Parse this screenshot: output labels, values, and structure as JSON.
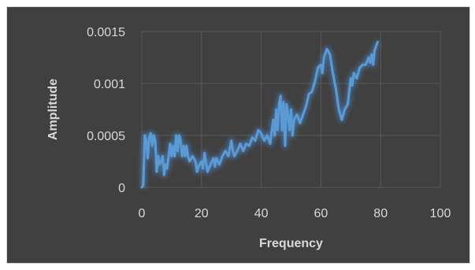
{
  "colors": {
    "background": "#404040",
    "grid": "#595959",
    "series": "#5b9bd5",
    "glow": "#4a90d9",
    "text": "#d9d9d9"
  },
  "chart_data": {
    "type": "scatter",
    "title": "",
    "xlabel": "Frequency",
    "ylabel": "Amplitude",
    "xlim": [
      0,
      100
    ],
    "ylim": [
      0,
      0.0015
    ],
    "xticks": [
      0,
      20,
      40,
      60,
      80,
      100
    ],
    "yticks": [
      0,
      0.0005,
      0.001,
      0.0015
    ],
    "ytick_labels": [
      "0",
      "0.0005",
      "0.001",
      "0.0015"
    ],
    "grid": true,
    "legend": "none",
    "series": [
      {
        "points": [
          [
            0,
            0
          ],
          [
            0.5,
            2e-05
          ],
          [
            1,
            0.0005
          ],
          [
            1.5,
            0.00045
          ],
          [
            2,
            0.00028
          ],
          [
            2.5,
            0.00048
          ],
          [
            3,
            0.00052
          ],
          [
            3.5,
            0.0004
          ],
          [
            4,
            0.0005
          ],
          [
            4.5,
            0.00045
          ],
          [
            5,
            0.00015
          ],
          [
            5.5,
            0.0003
          ],
          [
            6,
            0.00022
          ],
          [
            6.5,
            0.00025
          ],
          [
            7,
            0.0003
          ],
          [
            7.5,
            0.00012
          ],
          [
            8,
            0.00022
          ],
          [
            8.5,
            0.00018
          ],
          [
            9,
            0.0003
          ],
          [
            9.5,
            0.00042
          ],
          [
            10,
            0.0003
          ],
          [
            10.5,
            0.0004
          ],
          [
            11,
            0.0003
          ],
          [
            11.5,
            0.0005
          ],
          [
            12,
            0.00035
          ],
          [
            12.5,
            0.0005
          ],
          [
            13,
            0.00045
          ],
          [
            13.5,
            0.0003
          ],
          [
            14,
            0.0004
          ],
          [
            14.5,
            0.0003
          ],
          [
            15,
            0.0004
          ],
          [
            15.5,
            0.0003
          ],
          [
            16,
            0.00025
          ],
          [
            17,
            0.0003
          ],
          [
            18,
            0.00025
          ],
          [
            18.5,
            0.00015
          ],
          [
            19,
            0.0002
          ],
          [
            20,
            0.00025
          ],
          [
            20.5,
            0.00018
          ],
          [
            21,
            0.00033
          ],
          [
            22,
            0.00015
          ],
          [
            23,
            0.00022
          ],
          [
            24,
            0.00028
          ],
          [
            24.5,
            0.0002
          ],
          [
            25,
            0.00028
          ],
          [
            26,
            0.00022
          ],
          [
            27,
            0.0003
          ],
          [
            28,
            0.00035
          ],
          [
            29,
            0.0003
          ],
          [
            30,
            0.00045
          ],
          [
            30.5,
            0.00035
          ],
          [
            31,
            0.0003
          ],
          [
            32,
            0.00035
          ],
          [
            33,
            0.00042
          ],
          [
            34,
            0.00035
          ],
          [
            35,
            0.00042
          ],
          [
            36,
            0.0004
          ],
          [
            37,
            0.00048
          ],
          [
            38,
            0.00045
          ],
          [
            39,
            0.00055
          ],
          [
            40,
            0.00052
          ],
          [
            41,
            0.00045
          ],
          [
            42,
            0.0005
          ],
          [
            43,
            0.00042
          ],
          [
            44,
            0.00065
          ],
          [
            44.5,
            0.0005
          ],
          [
            45,
            0.00075
          ],
          [
            45.5,
            0.00055
          ],
          [
            46,
            0.0008
          ],
          [
            46.5,
            0.00088
          ],
          [
            47,
            0.00055
          ],
          [
            47.5,
            0.00082
          ],
          [
            48,
            0.0004
          ],
          [
            48.5,
            0.0008
          ],
          [
            49,
            0.0007
          ],
          [
            49.5,
            0.00055
          ],
          [
            50,
            0.00075
          ],
          [
            50.5,
            0.0005
          ],
          [
            51,
            0.00065
          ],
          [
            52,
            0.0007
          ],
          [
            53,
            0.00062
          ],
          [
            54,
            0.0007
          ],
          [
            55,
            0.00078
          ],
          [
            56,
            0.0009
          ],
          [
            57,
            0.00092
          ],
          [
            58,
            0.00102
          ],
          [
            59,
            0.00115
          ],
          [
            60,
            0.00118
          ],
          [
            60.5,
            0.0011
          ],
          [
            61,
            0.00125
          ],
          [
            62,
            0.00133
          ],
          [
            63,
            0.00128
          ],
          [
            64,
            0.0011
          ],
          [
            65,
            0.00095
          ],
          [
            66,
            0.00075
          ],
          [
            67,
            0.00065
          ],
          [
            68,
            0.00075
          ],
          [
            69,
            0.0008
          ],
          [
            70,
            0.00105
          ],
          [
            70.5,
            0.00098
          ],
          [
            71,
            0.0011
          ],
          [
            72,
            0.00105
          ],
          [
            73,
            0.00115
          ],
          [
            74,
            0.00118
          ],
          [
            75,
            0.00118
          ],
          [
            76,
            0.00125
          ],
          [
            76.5,
            0.0012
          ],
          [
            77,
            0.00128
          ],
          [
            77.5,
            0.00118
          ],
          [
            78,
            0.00132
          ],
          [
            79,
            0.0014
          ]
        ]
      }
    ]
  }
}
